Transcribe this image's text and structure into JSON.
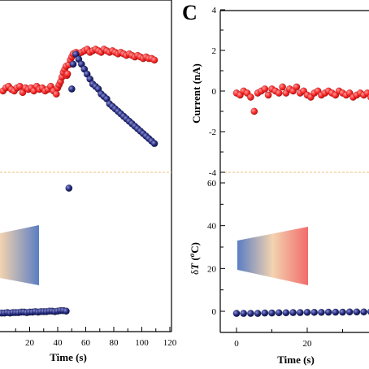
{
  "chart_data": [
    {
      "type": "scatter",
      "panel": "left-top",
      "xlim": [
        0,
        120
      ],
      "series": [
        {
          "color": "#ff2a2a",
          "x": [
            1,
            3,
            5,
            7,
            9,
            11,
            13,
            15,
            17,
            19,
            21,
            23,
            25,
            27,
            29,
            31,
            33,
            35,
            37,
            39,
            40,
            41,
            42,
            43,
            44,
            45,
            46,
            46.5,
            47,
            48,
            49,
            50,
            51,
            53,
            55,
            57,
            59,
            61,
            63,
            65,
            67,
            69,
            71,
            73,
            75,
            77,
            79,
            81,
            83,
            85,
            87,
            89,
            91,
            93,
            95,
            97,
            99,
            101,
            103,
            105,
            107,
            109
          ],
          "y": [
            -0.1,
            0.1,
            0.2,
            0,
            -0.1,
            0.1,
            0.2,
            -0.2,
            0.1,
            0,
            0.1,
            -0.1,
            0.2,
            0,
            0.1,
            -0.1,
            0,
            0.2,
            -0.1,
            -0.3,
            0.1,
            0.3,
            0.5,
            0.8,
            1.1,
            1.3,
            1.5,
            0.9,
            1.0,
            1.6,
            1.9,
            2.1,
            2.3,
            2.4,
            2.3,
            2.4,
            2.5,
            2.6,
            2.4,
            2.5,
            2.6,
            2.5,
            2.4,
            2.6,
            2.5,
            2.4,
            2.5,
            2.4,
            2.3,
            2.4,
            2.3,
            2.2,
            2.3,
            2.2,
            2.1,
            2.2,
            2.1,
            2.0,
            2.1,
            2.0,
            2.0,
            1.9
          ]
        }
      ]
    },
    {
      "type": "scatter",
      "panel": "left-bottom",
      "xlabel": "Time (s)",
      "xlim": [
        0,
        120
      ],
      "xticks": [
        "20",
        "40",
        "60",
        "80",
        "100",
        "120"
      ],
      "series": [
        {
          "color": "#242a7e",
          "x": [
            0,
            2,
            4,
            6,
            8,
            10,
            12,
            14,
            16,
            18,
            20,
            22,
            24,
            26,
            28,
            30,
            32,
            34,
            36,
            38,
            40,
            42,
            44,
            46,
            48,
            50,
            51,
            53,
            55,
            57,
            59,
            61,
            63,
            65,
            67,
            69,
            71,
            73,
            75,
            77,
            79,
            81,
            83,
            85,
            87,
            89,
            91,
            93,
            95,
            97,
            99,
            101,
            103,
            105,
            107,
            109
          ],
          "y": [
            -0.2,
            -0.2,
            -0.1,
            -0.2,
            -0.1,
            -0.1,
            -0.1,
            0,
            0,
            -0.1,
            0,
            0,
            0.1,
            0,
            0.1,
            0.1,
            0.1,
            0.2,
            0.2,
            0.1,
            0.2,
            0.3,
            0.3,
            0.2,
            25,
            45,
            50,
            52,
            51,
            50,
            49,
            48,
            47,
            46,
            45.5,
            45,
            44,
            43.5,
            43,
            42,
            41.5,
            41,
            40.5,
            40,
            39.5,
            39,
            38.5,
            38,
            37.5,
            37,
            36.5,
            36,
            35.5,
            35,
            34.5,
            34
          ]
        }
      ]
    },
    {
      "type": "scatter",
      "panel": "C-top",
      "ylabel": "Current (nA)",
      "xlim": [
        -6,
        60
      ],
      "ylim": [
        -4,
        4
      ],
      "yticks": [
        "4",
        "2",
        "0",
        "-2",
        "-4"
      ],
      "series": [
        {
          "color": "#ff2a2a",
          "x": [
            0,
            1,
            2,
            3,
            4,
            5,
            6,
            7,
            8,
            9,
            10,
            11,
            12,
            13,
            14,
            15,
            16,
            17,
            18,
            19,
            20,
            21,
            22,
            23,
            24,
            25,
            26,
            27,
            28,
            29,
            30,
            31,
            32,
            33,
            34,
            35,
            36,
            37,
            38,
            39,
            40,
            41,
            42,
            43,
            44,
            45,
            46,
            47,
            48,
            49,
            50,
            51,
            52,
            53,
            54,
            55,
            56,
            57,
            58,
            59,
            60
          ],
          "y": [
            -0.1,
            -0.2,
            0,
            -0.1,
            -0.3,
            -1.0,
            -0.1,
            0,
            0.1,
            -0.2,
            0.1,
            0,
            -0.1,
            0.2,
            -0.1,
            0.1,
            0,
            0.2,
            -0.1,
            0,
            -0.2,
            -0.3,
            -0.1,
            0,
            -0.2,
            -0.1,
            0,
            -0.1,
            -0.2,
            0,
            -0.1,
            -0.2,
            -0.1,
            -0.3,
            -0.2,
            -0.1,
            -0.2,
            -0.1,
            -0.3,
            -0.5,
            -0.3,
            -0.6,
            -0.4,
            -0.6,
            -0.3,
            -0.4,
            -0.6,
            -0.5,
            -0.7,
            -0.6,
            -0.8,
            -1.0,
            -0.7,
            -2.6,
            -3.0,
            -3.4,
            -3.8,
            -2.8,
            -3.1,
            -2.9,
            -3.0
          ]
        }
      ]
    },
    {
      "type": "scatter",
      "panel": "C-bottom",
      "xlabel": "Time (s)",
      "ylabel": "δT (°C)",
      "xlim": [
        -6,
        60
      ],
      "ylim": [
        -8,
        64
      ],
      "xticks": [
        "0",
        "20",
        "40",
        "60"
      ],
      "yticks": [
        "60",
        "40",
        "20",
        "0"
      ],
      "series": [
        {
          "color": "#242a7e",
          "x": [
            0,
            2,
            4,
            6,
            8,
            10,
            12,
            14,
            16,
            18,
            20,
            22,
            24,
            26,
            28,
            30,
            32,
            34,
            36,
            38,
            40,
            42,
            44,
            46,
            48,
            50,
            51,
            52,
            53,
            54,
            55,
            56,
            57,
            58,
            59,
            60
          ],
          "y": [
            -1,
            -1,
            -1,
            -1,
            -0.8,
            -0.8,
            -0.7,
            -0.7,
            -0.6,
            -0.6,
            -0.5,
            -0.5,
            -0.5,
            -0.4,
            -0.4,
            -0.4,
            -0.3,
            -0.3,
            -0.3,
            -0.2,
            -0.2,
            -0.2,
            -0.1,
            0,
            0,
            0.2,
            0.5,
            25,
            48,
            49,
            49.5,
            48.5,
            47.5,
            47,
            46.5,
            46
          ]
        }
      ]
    }
  ],
  "labels": {
    "panel_c": "C",
    "current_ylabel": "Current (nA)",
    "temp_ylabel_delta": "δ",
    "temp_ylabel_T": "T",
    "temp_ylabel_unit": " (",
    "temp_ylabel_deg": "o",
    "temp_ylabel_end": "C)",
    "time_label": "Time (s)"
  },
  "colors": {
    "red_marker": "#ff2a2a",
    "blue_marker": "#242a7e",
    "divider": "#f2c27a",
    "gradient_blue": "#5b7ec3",
    "gradient_mid": "#f3d3b0",
    "gradient_red": "#f26b6b"
  }
}
